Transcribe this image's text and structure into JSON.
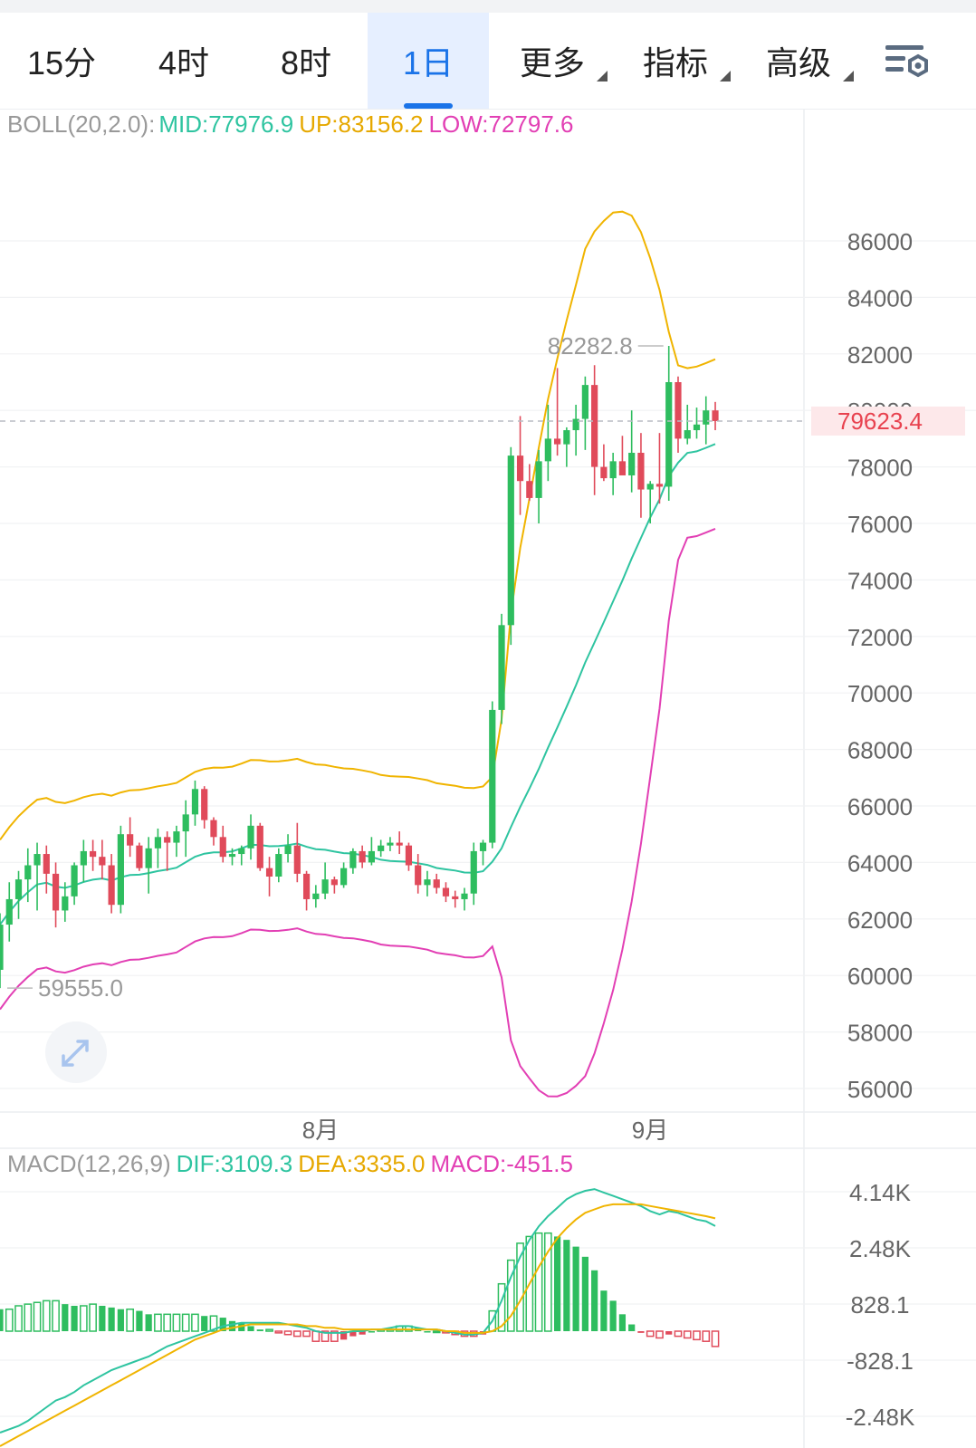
{
  "tabs": [
    {
      "label": "15分",
      "active": false,
      "dropdown": false
    },
    {
      "label": "4时",
      "active": false,
      "dropdown": false
    },
    {
      "label": "8时",
      "active": false,
      "dropdown": false
    },
    {
      "label": "1日",
      "active": true,
      "dropdown": false
    },
    {
      "label": "更多",
      "active": false,
      "dropdown": true
    },
    {
      "label": "指标",
      "active": false,
      "dropdown": true
    },
    {
      "label": "高级",
      "active": false,
      "dropdown": true
    }
  ],
  "settings_icon": "chart-settings-icon",
  "expand_icon": "expand-arrows-icon",
  "boll_legend": {
    "name": "BOLL(20,2.0):",
    "mid": "MID:77976.9",
    "up": "UP:83156.2",
    "low": "LOW:72797.6"
  },
  "macd_legend": {
    "name": "MACD(12,26,9)",
    "dif": "DIF:3109.3",
    "dea": "DEA:3335.0",
    "macd": "MACD:-451.5"
  },
  "colors": {
    "up": "#2ebd5f",
    "down": "#e04a5a",
    "mid": "#2ec4a0",
    "upper": "#f0b400",
    "lower": "#e23fb4",
    "active_tab": "#1a73e8",
    "price_label": "#e8424f"
  },
  "chart_data": [
    {
      "type": "candlestick",
      "price_axis": {
        "ticks": [
          "86000",
          "84000",
          "82000",
          "80000",
          "78000",
          "76000",
          "74000",
          "72000",
          "70000",
          "68000",
          "66000",
          "64000",
          "62000",
          "60000",
          "58000",
          "56000"
        ],
        "ylim": [
          55200,
          88000
        ]
      },
      "time_axis": {
        "labels": [
          "8月",
          "9月"
        ]
      },
      "current_price": {
        "label": "79623.4",
        "value": 79623.4
      },
      "high_marker": {
        "label": "82282.8",
        "value": 82282.8
      },
      "low_marker": {
        "label": "59555.0",
        "value": 59555.0
      },
      "candles": [
        [
          60200,
          62200,
          59555,
          61800
        ],
        [
          61800,
          63300,
          61200,
          62700
        ],
        [
          62700,
          63700,
          62000,
          63400
        ],
        [
          63400,
          64500,
          62600,
          63900
        ],
        [
          63900,
          64700,
          62300,
          64300
        ],
        [
          64300,
          64600,
          62900,
          63600
        ],
        [
          63600,
          64000,
          61700,
          62300
        ],
        [
          62300,
          63300,
          61900,
          62800
        ],
        [
          62800,
          64000,
          62500,
          63900
        ],
        [
          63900,
          64800,
          63300,
          64400
        ],
        [
          64400,
          64800,
          63700,
          64200
        ],
        [
          64200,
          64800,
          63400,
          63900
        ],
        [
          63900,
          64300,
          62200,
          62500
        ],
        [
          62500,
          65300,
          62200,
          65000
        ],
        [
          65000,
          65600,
          64200,
          64600
        ],
        [
          64600,
          64700,
          63700,
          63800
        ],
        [
          63800,
          64900,
          62900,
          64500
        ],
        [
          64500,
          65200,
          63800,
          64900
        ],
        [
          64900,
          65100,
          63700,
          64700
        ],
        [
          64700,
          65300,
          64200,
          65100
        ],
        [
          65100,
          66200,
          64200,
          65700
        ],
        [
          65700,
          66900,
          65300,
          66600
        ],
        [
          66600,
          66700,
          65200,
          65500
        ],
        [
          65500,
          65600,
          64600,
          64900
        ],
        [
          64900,
          65300,
          64000,
          64200
        ],
        [
          64200,
          64500,
          63900,
          64300
        ],
        [
          64300,
          64600,
          63900,
          64500
        ],
        [
          64500,
          65700,
          64100,
          65300
        ],
        [
          65300,
          65400,
          63700,
          63800
        ],
        [
          63800,
          64200,
          62800,
          63500
        ],
        [
          63500,
          64500,
          63300,
          64300
        ],
        [
          64300,
          65000,
          64000,
          64600
        ],
        [
          64600,
          65400,
          63300,
          63600
        ],
        [
          63600,
          63700,
          62300,
          62700
        ],
        [
          62700,
          63200,
          62400,
          62900
        ],
        [
          62900,
          64000,
          62700,
          63400
        ],
        [
          63400,
          63500,
          62900,
          63200
        ],
        [
          63200,
          64000,
          63100,
          63800
        ],
        [
          63800,
          64500,
          63600,
          64400
        ],
        [
          64400,
          64600,
          63800,
          64000
        ],
        [
          64000,
          64900,
          63900,
          64400
        ],
        [
          64400,
          64800,
          64200,
          64600
        ],
        [
          64600,
          64900,
          64400,
          64700
        ],
        [
          64700,
          65100,
          64300,
          64600
        ],
        [
          64600,
          64700,
          63700,
          63900
        ],
        [
          63900,
          64300,
          62900,
          63200
        ],
        [
          63200,
          63700,
          62800,
          63400
        ],
        [
          63400,
          63600,
          62900,
          63100
        ],
        [
          63100,
          63300,
          62600,
          62800
        ],
        [
          62800,
          63000,
          62400,
          62700
        ],
        [
          62700,
          63100,
          62300,
          62900
        ],
        [
          62900,
          64700,
          62500,
          64400
        ],
        [
          64400,
          64800,
          63900,
          64700
        ],
        [
          64700,
          69700,
          64500,
          69400
        ],
        [
          69400,
          72800,
          68900,
          72400
        ],
        [
          72400,
          78700,
          71700,
          78400
        ],
        [
          78400,
          79800,
          76300,
          77500
        ],
        [
          77500,
          78100,
          76800,
          76900
        ],
        [
          76900,
          78600,
          76000,
          78200
        ],
        [
          78200,
          80200,
          77500,
          79000
        ],
        [
          79000,
          81500,
          78400,
          78800
        ],
        [
          78800,
          79400,
          78000,
          79300
        ],
        [
          79300,
          80200,
          78400,
          79700
        ],
        [
          79700,
          81200,
          78600,
          80900
        ],
        [
          80900,
          81600,
          77000,
          78000
        ],
        [
          78000,
          78800,
          77500,
          77600
        ],
        [
          77600,
          78500,
          77000,
          78200
        ],
        [
          78200,
          79100,
          77800,
          77700
        ],
        [
          77700,
          80000,
          77100,
          78500
        ],
        [
          78500,
          79200,
          76200,
          77200
        ],
        [
          77200,
          77500,
          76000,
          77400
        ],
        [
          77400,
          79200,
          76700,
          77300
        ],
        [
          77300,
          82282.8,
          76800,
          81000
        ],
        [
          81000,
          81200,
          78500,
          79000
        ],
        [
          79000,
          80200,
          78800,
          79300
        ],
        [
          79300,
          80100,
          79000,
          79500
        ],
        [
          79500,
          80500,
          78800,
          80000
        ],
        [
          80000,
          80300,
          79300,
          79623.4
        ]
      ]
    },
    {
      "type": "macd",
      "axis_ticks": [
        "4.14K",
        "2.48K",
        "828.1",
        "-828.1",
        "-2.48K"
      ],
      "ylim": [
        -2500,
        4700
      ],
      "dif": [
        -3000,
        -2900,
        -2800,
        -2650,
        -2450,
        -2250,
        -2050,
        -1950,
        -1800,
        -1600,
        -1450,
        -1300,
        -1150,
        -1050,
        -950,
        -850,
        -750,
        -600,
        -450,
        -350,
        -250,
        -150,
        -50,
        50,
        150,
        200,
        250,
        250,
        250,
        250,
        250,
        200,
        150,
        100,
        0,
        -50,
        -50,
        -50,
        0,
        0,
        50,
        50,
        100,
        150,
        150,
        100,
        50,
        50,
        0,
        -50,
        -100,
        -100,
        -50,
        300,
        900,
        1600,
        2200,
        2700,
        3100,
        3400,
        3650,
        3900,
        4050,
        4150,
        4200,
        4100,
        4000,
        3900,
        3800,
        3700,
        3550,
        3450,
        3550,
        3500,
        3400,
        3300,
        3250,
        3109.3
      ],
      "dea": [
        -3400,
        -3250,
        -3100,
        -2950,
        -2800,
        -2650,
        -2500,
        -2350,
        -2200,
        -2050,
        -1900,
        -1750,
        -1600,
        -1450,
        -1300,
        -1150,
        -1000,
        -850,
        -700,
        -550,
        -400,
        -250,
        -150,
        -50,
        50,
        100,
        150,
        200,
        200,
        200,
        200,
        200,
        200,
        150,
        150,
        100,
        100,
        50,
        50,
        50,
        50,
        50,
        50,
        50,
        50,
        50,
        50,
        50,
        0,
        0,
        -50,
        -50,
        -50,
        0,
        150,
        450,
        900,
        1400,
        1900,
        2350,
        2750,
        3050,
        3300,
        3500,
        3600,
        3700,
        3750,
        3750,
        3750,
        3750,
        3700,
        3650,
        3600,
        3550,
        3500,
        3450,
        3400,
        3335.0
      ],
      "macd": [
        650,
        650,
        750,
        800,
        850,
        900,
        900,
        800,
        750,
        750,
        800,
        750,
        700,
        650,
        650,
        600,
        500,
        500,
        500,
        500,
        500,
        500,
        450,
        450,
        400,
        300,
        250,
        150,
        50,
        50,
        -50,
        -100,
        -150,
        -150,
        -300,
        -300,
        -300,
        -250,
        -150,
        -100,
        0,
        50,
        50,
        150,
        150,
        100,
        0,
        0,
        -50,
        -100,
        -150,
        -150,
        -100,
        600,
        1400,
        2100,
        2600,
        2800,
        2900,
        2900,
        2800,
        2700,
        2500,
        2200,
        1800,
        1200,
        900,
        500,
        200,
        -50,
        -150,
        -200,
        -100,
        -150,
        -200,
        -250,
        -300,
        -451.5
      ]
    }
  ]
}
